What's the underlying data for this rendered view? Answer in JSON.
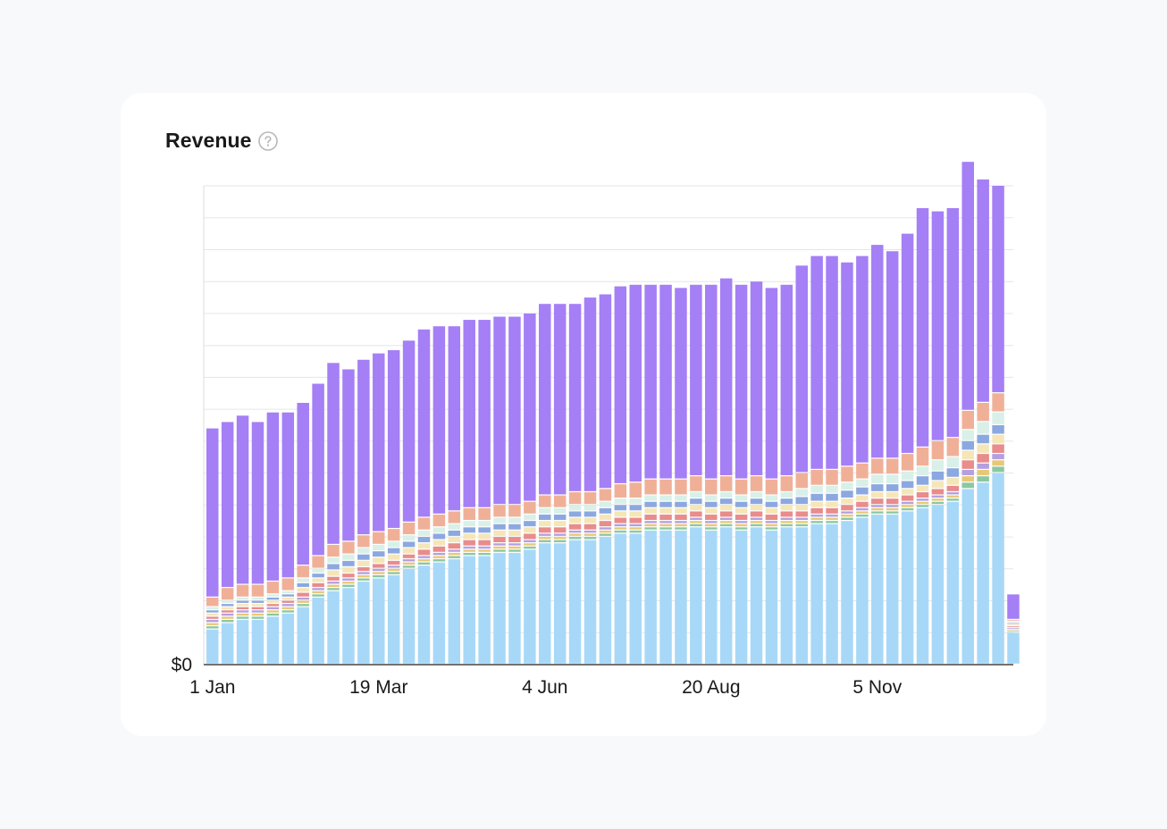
{
  "card": {
    "title": "Revenue",
    "help_icon": "question-circle-icon"
  },
  "chart_data": {
    "type": "bar",
    "stacked": true,
    "title": "Revenue",
    "xlabel": "",
    "ylabel": "",
    "y_tick_labels": [
      "$0"
    ],
    "x_tick_labels": [
      {
        "label": "1 Jan",
        "index": 0
      },
      {
        "label": "19 Mar",
        "index": 11
      },
      {
        "label": "4 Jun",
        "index": 22
      },
      {
        "label": "20 Aug",
        "index": 33
      },
      {
        "label": "5 Nov",
        "index": 44
      }
    ],
    "ylim": [
      0,
      15
    ],
    "grid": true,
    "categories_count": 54,
    "series": [
      {
        "color": "#a8d8f8",
        "values": [
          1.1,
          1.3,
          1.4,
          1.4,
          1.5,
          1.6,
          1.8,
          2.1,
          2.3,
          2.4,
          2.6,
          2.7,
          2.8,
          3.0,
          3.1,
          3.2,
          3.3,
          3.4,
          3.4,
          3.5,
          3.5,
          3.6,
          3.8,
          3.8,
          3.9,
          3.9,
          4.0,
          4.1,
          4.1,
          4.2,
          4.2,
          4.2,
          4.3,
          4.2,
          4.3,
          4.2,
          4.3,
          4.2,
          4.3,
          4.3,
          4.4,
          4.4,
          4.5,
          4.6,
          4.7,
          4.7,
          4.8,
          4.9,
          5.0,
          5.1,
          5.5,
          5.7,
          6.0,
          1.0
        ]
      },
      {
        "color": "#8bc8a0",
        "values": [
          0.1,
          0.1,
          0.1,
          0.1,
          0.1,
          0.1,
          0.1,
          0.1,
          0.1,
          0.1,
          0.1,
          0.1,
          0.1,
          0.1,
          0.1,
          0.1,
          0.1,
          0.1,
          0.1,
          0.1,
          0.1,
          0.1,
          0.1,
          0.1,
          0.1,
          0.1,
          0.1,
          0.1,
          0.1,
          0.1,
          0.1,
          0.1,
          0.1,
          0.1,
          0.1,
          0.1,
          0.1,
          0.1,
          0.1,
          0.1,
          0.1,
          0.1,
          0.1,
          0.1,
          0.1,
          0.1,
          0.1,
          0.1,
          0.1,
          0.1,
          0.2,
          0.2,
          0.2,
          0.05
        ]
      },
      {
        "color": "#e8c878",
        "values": [
          0.1,
          0.1,
          0.1,
          0.1,
          0.1,
          0.1,
          0.1,
          0.1,
          0.1,
          0.1,
          0.1,
          0.1,
          0.1,
          0.1,
          0.1,
          0.1,
          0.1,
          0.1,
          0.1,
          0.1,
          0.1,
          0.1,
          0.1,
          0.1,
          0.1,
          0.1,
          0.1,
          0.1,
          0.1,
          0.1,
          0.1,
          0.1,
          0.1,
          0.1,
          0.1,
          0.1,
          0.1,
          0.1,
          0.1,
          0.1,
          0.1,
          0.1,
          0.1,
          0.1,
          0.1,
          0.1,
          0.1,
          0.1,
          0.1,
          0.1,
          0.2,
          0.2,
          0.2,
          0.05
        ]
      },
      {
        "color": "#b4a0e0",
        "values": [
          0.1,
          0.1,
          0.1,
          0.1,
          0.1,
          0.1,
          0.1,
          0.1,
          0.1,
          0.1,
          0.1,
          0.1,
          0.1,
          0.1,
          0.1,
          0.1,
          0.1,
          0.1,
          0.1,
          0.1,
          0.1,
          0.1,
          0.1,
          0.1,
          0.1,
          0.1,
          0.1,
          0.1,
          0.1,
          0.1,
          0.1,
          0.1,
          0.1,
          0.1,
          0.1,
          0.1,
          0.1,
          0.1,
          0.1,
          0.1,
          0.1,
          0.1,
          0.1,
          0.1,
          0.1,
          0.1,
          0.1,
          0.1,
          0.1,
          0.1,
          0.2,
          0.2,
          0.2,
          0.05
        ]
      },
      {
        "color": "#e88c8c",
        "values": [
          0.1,
          0.1,
          0.1,
          0.1,
          0.1,
          0.1,
          0.15,
          0.15,
          0.15,
          0.15,
          0.15,
          0.15,
          0.15,
          0.15,
          0.2,
          0.2,
          0.2,
          0.2,
          0.2,
          0.2,
          0.2,
          0.2,
          0.2,
          0.2,
          0.2,
          0.2,
          0.2,
          0.2,
          0.2,
          0.2,
          0.2,
          0.2,
          0.2,
          0.2,
          0.2,
          0.2,
          0.2,
          0.2,
          0.2,
          0.2,
          0.2,
          0.2,
          0.2,
          0.2,
          0.2,
          0.2,
          0.2,
          0.2,
          0.2,
          0.2,
          0.3,
          0.3,
          0.3,
          0.05
        ]
      },
      {
        "color": "#f5e6b8",
        "values": [
          0.1,
          0.1,
          0.1,
          0.1,
          0.1,
          0.1,
          0.15,
          0.15,
          0.2,
          0.2,
          0.2,
          0.2,
          0.2,
          0.2,
          0.2,
          0.2,
          0.2,
          0.2,
          0.2,
          0.2,
          0.2,
          0.2,
          0.2,
          0.2,
          0.2,
          0.2,
          0.2,
          0.2,
          0.2,
          0.2,
          0.2,
          0.2,
          0.2,
          0.2,
          0.2,
          0.2,
          0.2,
          0.2,
          0.2,
          0.2,
          0.2,
          0.2,
          0.2,
          0.2,
          0.2,
          0.2,
          0.2,
          0.2,
          0.25,
          0.25,
          0.3,
          0.3,
          0.3,
          0.05
        ]
      },
      {
        "color": "#8ca8e0",
        "values": [
          0.1,
          0.1,
          0.1,
          0.1,
          0.1,
          0.1,
          0.15,
          0.15,
          0.2,
          0.2,
          0.2,
          0.2,
          0.2,
          0.2,
          0.2,
          0.2,
          0.2,
          0.2,
          0.2,
          0.2,
          0.2,
          0.2,
          0.2,
          0.2,
          0.2,
          0.2,
          0.2,
          0.2,
          0.2,
          0.2,
          0.2,
          0.2,
          0.2,
          0.2,
          0.2,
          0.2,
          0.2,
          0.2,
          0.2,
          0.25,
          0.25,
          0.25,
          0.25,
          0.25,
          0.25,
          0.25,
          0.25,
          0.3,
          0.3,
          0.3,
          0.3,
          0.3,
          0.3,
          0.05
        ]
      },
      {
        "color": "#d8f0e8",
        "values": [
          0.1,
          0.1,
          0.1,
          0.1,
          0.1,
          0.1,
          0.15,
          0.15,
          0.2,
          0.2,
          0.2,
          0.2,
          0.2,
          0.2,
          0.2,
          0.2,
          0.2,
          0.2,
          0.2,
          0.2,
          0.2,
          0.2,
          0.2,
          0.2,
          0.2,
          0.2,
          0.2,
          0.2,
          0.2,
          0.2,
          0.2,
          0.2,
          0.2,
          0.2,
          0.2,
          0.2,
          0.2,
          0.2,
          0.2,
          0.25,
          0.25,
          0.25,
          0.25,
          0.25,
          0.3,
          0.3,
          0.3,
          0.3,
          0.35,
          0.35,
          0.35,
          0.4,
          0.4,
          0.05
        ]
      },
      {
        "color": "#f0b098",
        "values": [
          0.3,
          0.4,
          0.4,
          0.4,
          0.4,
          0.4,
          0.4,
          0.4,
          0.4,
          0.4,
          0.4,
          0.4,
          0.4,
          0.4,
          0.4,
          0.4,
          0.4,
          0.4,
          0.4,
          0.4,
          0.4,
          0.4,
          0.4,
          0.4,
          0.4,
          0.4,
          0.4,
          0.45,
          0.5,
          0.5,
          0.5,
          0.5,
          0.5,
          0.5,
          0.5,
          0.5,
          0.5,
          0.5,
          0.5,
          0.5,
          0.5,
          0.5,
          0.5,
          0.5,
          0.5,
          0.5,
          0.55,
          0.6,
          0.6,
          0.6,
          0.6,
          0.6,
          0.6,
          0.05
        ]
      },
      {
        "color": "#a57ff5",
        "values": [
          5.3,
          5.2,
          5.3,
          5.1,
          5.3,
          5.2,
          5.1,
          5.4,
          5.7,
          5.4,
          5.5,
          5.6,
          5.6,
          5.7,
          5.9,
          5.9,
          5.8,
          5.9,
          5.9,
          5.9,
          5.9,
          5.9,
          6.0,
          6.0,
          5.9,
          6.1,
          6.1,
          6.2,
          6.2,
          6.1,
          6.1,
          6.0,
          6.0,
          6.1,
          6.2,
          6.1,
          6.1,
          6.0,
          6.0,
          6.5,
          6.7,
          6.7,
          6.4,
          6.5,
          6.7,
          6.5,
          6.9,
          7.5,
          7.2,
          7.2,
          7.8,
          7.0,
          6.5,
          0.8
        ]
      }
    ]
  }
}
